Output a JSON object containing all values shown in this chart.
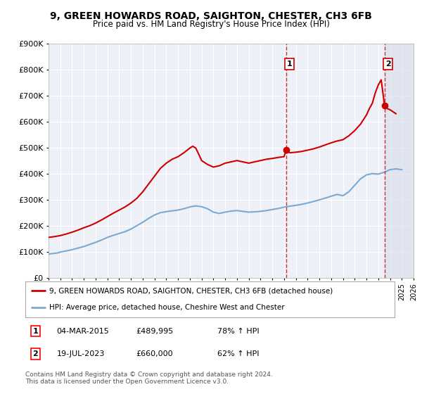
{
  "title": "9, GREEN HOWARDS ROAD, SAIGHTON, CHESTER, CH3 6FB",
  "subtitle": "Price paid vs. HM Land Registry's House Price Index (HPI)",
  "legend_line1": "9, GREEN HOWARDS ROAD, SAIGHTON, CHESTER, CH3 6FB (detached house)",
  "legend_line2": "HPI: Average price, detached house, Cheshire West and Chester",
  "table_row1": [
    "1",
    "04-MAR-2015",
    "£489,995",
    "78% ↑ HPI"
  ],
  "table_row2": [
    "2",
    "19-JUL-2023",
    "£660,000",
    "62% ↑ HPI"
  ],
  "footnote": "Contains HM Land Registry data © Crown copyright and database right 2024.\nThis data is licensed under the Open Government Licence v3.0.",
  "ylim": [
    0,
    900000
  ],
  "yticks": [
    0,
    100000,
    200000,
    300000,
    400000,
    500000,
    600000,
    700000,
    800000,
    900000
  ],
  "xlim_min": 1995.0,
  "xlim_max": 2026.0,
  "sale1_x": 2015.17,
  "sale1_y": 489995,
  "sale2_x": 2023.54,
  "sale2_y": 660000,
  "vline1_x": 2015.17,
  "vline2_x": 2023.54,
  "hpi_color": "#7aaad4",
  "price_color": "#cc0000",
  "vline_color": "#cc0000",
  "bg_color": "#ffffff",
  "plot_bg_color": "#eef0f8",
  "grid_color": "#ffffff",
  "hatch_color": "#d8dce8",
  "hpi_x": [
    1995.0,
    1995.08,
    1995.17,
    1995.25,
    1995.33,
    1995.42,
    1995.5,
    1995.58,
    1995.67,
    1995.75,
    1995.83,
    1995.92,
    1996.0,
    1996.5,
    1997.0,
    1997.5,
    1998.0,
    1998.5,
    1999.0,
    1999.5,
    2000.0,
    2000.5,
    2001.0,
    2001.5,
    2002.0,
    2002.5,
    2003.0,
    2003.5,
    2004.0,
    2004.5,
    2005.0,
    2005.5,
    2006.0,
    2006.5,
    2007.0,
    2007.5,
    2008.0,
    2008.5,
    2009.0,
    2009.5,
    2010.0,
    2010.5,
    2011.0,
    2011.5,
    2012.0,
    2012.5,
    2013.0,
    2013.5,
    2014.0,
    2014.5,
    2015.0,
    2015.5,
    2016.0,
    2016.5,
    2017.0,
    2017.5,
    2018.0,
    2018.5,
    2019.0,
    2019.5,
    2020.0,
    2020.5,
    2021.0,
    2021.5,
    2022.0,
    2022.5,
    2023.0,
    2023.5,
    2024.0,
    2024.5,
    2025.0
  ],
  "hpi_y": [
    90000,
    91000,
    92000,
    92500,
    93000,
    93500,
    94000,
    94500,
    95000,
    95500,
    96000,
    97000,
    99000,
    103000,
    108000,
    114000,
    120000,
    128000,
    136000,
    145000,
    155000,
    163000,
    170000,
    177000,
    187000,
    200000,
    213000,
    228000,
    241000,
    250000,
    254000,
    257000,
    260000,
    265000,
    272000,
    276000,
    273000,
    265000,
    252000,
    247000,
    252000,
    256000,
    258000,
    255000,
    252000,
    253000,
    255000,
    258000,
    262000,
    266000,
    271000,
    275000,
    278000,
    282000,
    287000,
    293000,
    299000,
    306000,
    313000,
    320000,
    315000,
    330000,
    355000,
    380000,
    395000,
    400000,
    398000,
    405000,
    415000,
    418000,
    415000
  ],
  "price_x": [
    1995.0,
    1995.5,
    1996.0,
    1996.5,
    1997.0,
    1997.5,
    1998.0,
    1998.5,
    1999.0,
    1999.5,
    2000.0,
    2000.5,
    2001.0,
    2001.5,
    2002.0,
    2002.5,
    2003.0,
    2003.5,
    2004.0,
    2004.5,
    2005.0,
    2005.5,
    2006.0,
    2006.5,
    2007.0,
    2007.25,
    2007.5,
    2007.75,
    2008.0,
    2008.5,
    2009.0,
    2009.5,
    2010.0,
    2010.5,
    2011.0,
    2011.5,
    2012.0,
    2012.5,
    2013.0,
    2013.5,
    2014.0,
    2014.5,
    2015.0,
    2015.17,
    2015.5,
    2016.0,
    2016.5,
    2017.0,
    2017.5,
    2018.0,
    2018.5,
    2019.0,
    2019.5,
    2020.0,
    2020.5,
    2021.0,
    2021.5,
    2022.0,
    2022.25,
    2022.5,
    2022.75,
    2023.0,
    2023.25,
    2023.54,
    2023.75,
    2024.0,
    2024.5
  ],
  "price_y": [
    155000,
    158000,
    162000,
    168000,
    175000,
    183000,
    192000,
    200000,
    210000,
    222000,
    235000,
    248000,
    260000,
    272000,
    287000,
    305000,
    330000,
    360000,
    390000,
    420000,
    440000,
    455000,
    465000,
    480000,
    498000,
    505000,
    498000,
    475000,
    450000,
    435000,
    425000,
    430000,
    440000,
    445000,
    450000,
    445000,
    440000,
    445000,
    450000,
    455000,
    458000,
    462000,
    465000,
    489995,
    480000,
    482000,
    485000,
    490000,
    495000,
    502000,
    510000,
    518000,
    525000,
    530000,
    545000,
    565000,
    590000,
    625000,
    650000,
    670000,
    710000,
    740000,
    760000,
    660000,
    650000,
    645000,
    630000
  ]
}
